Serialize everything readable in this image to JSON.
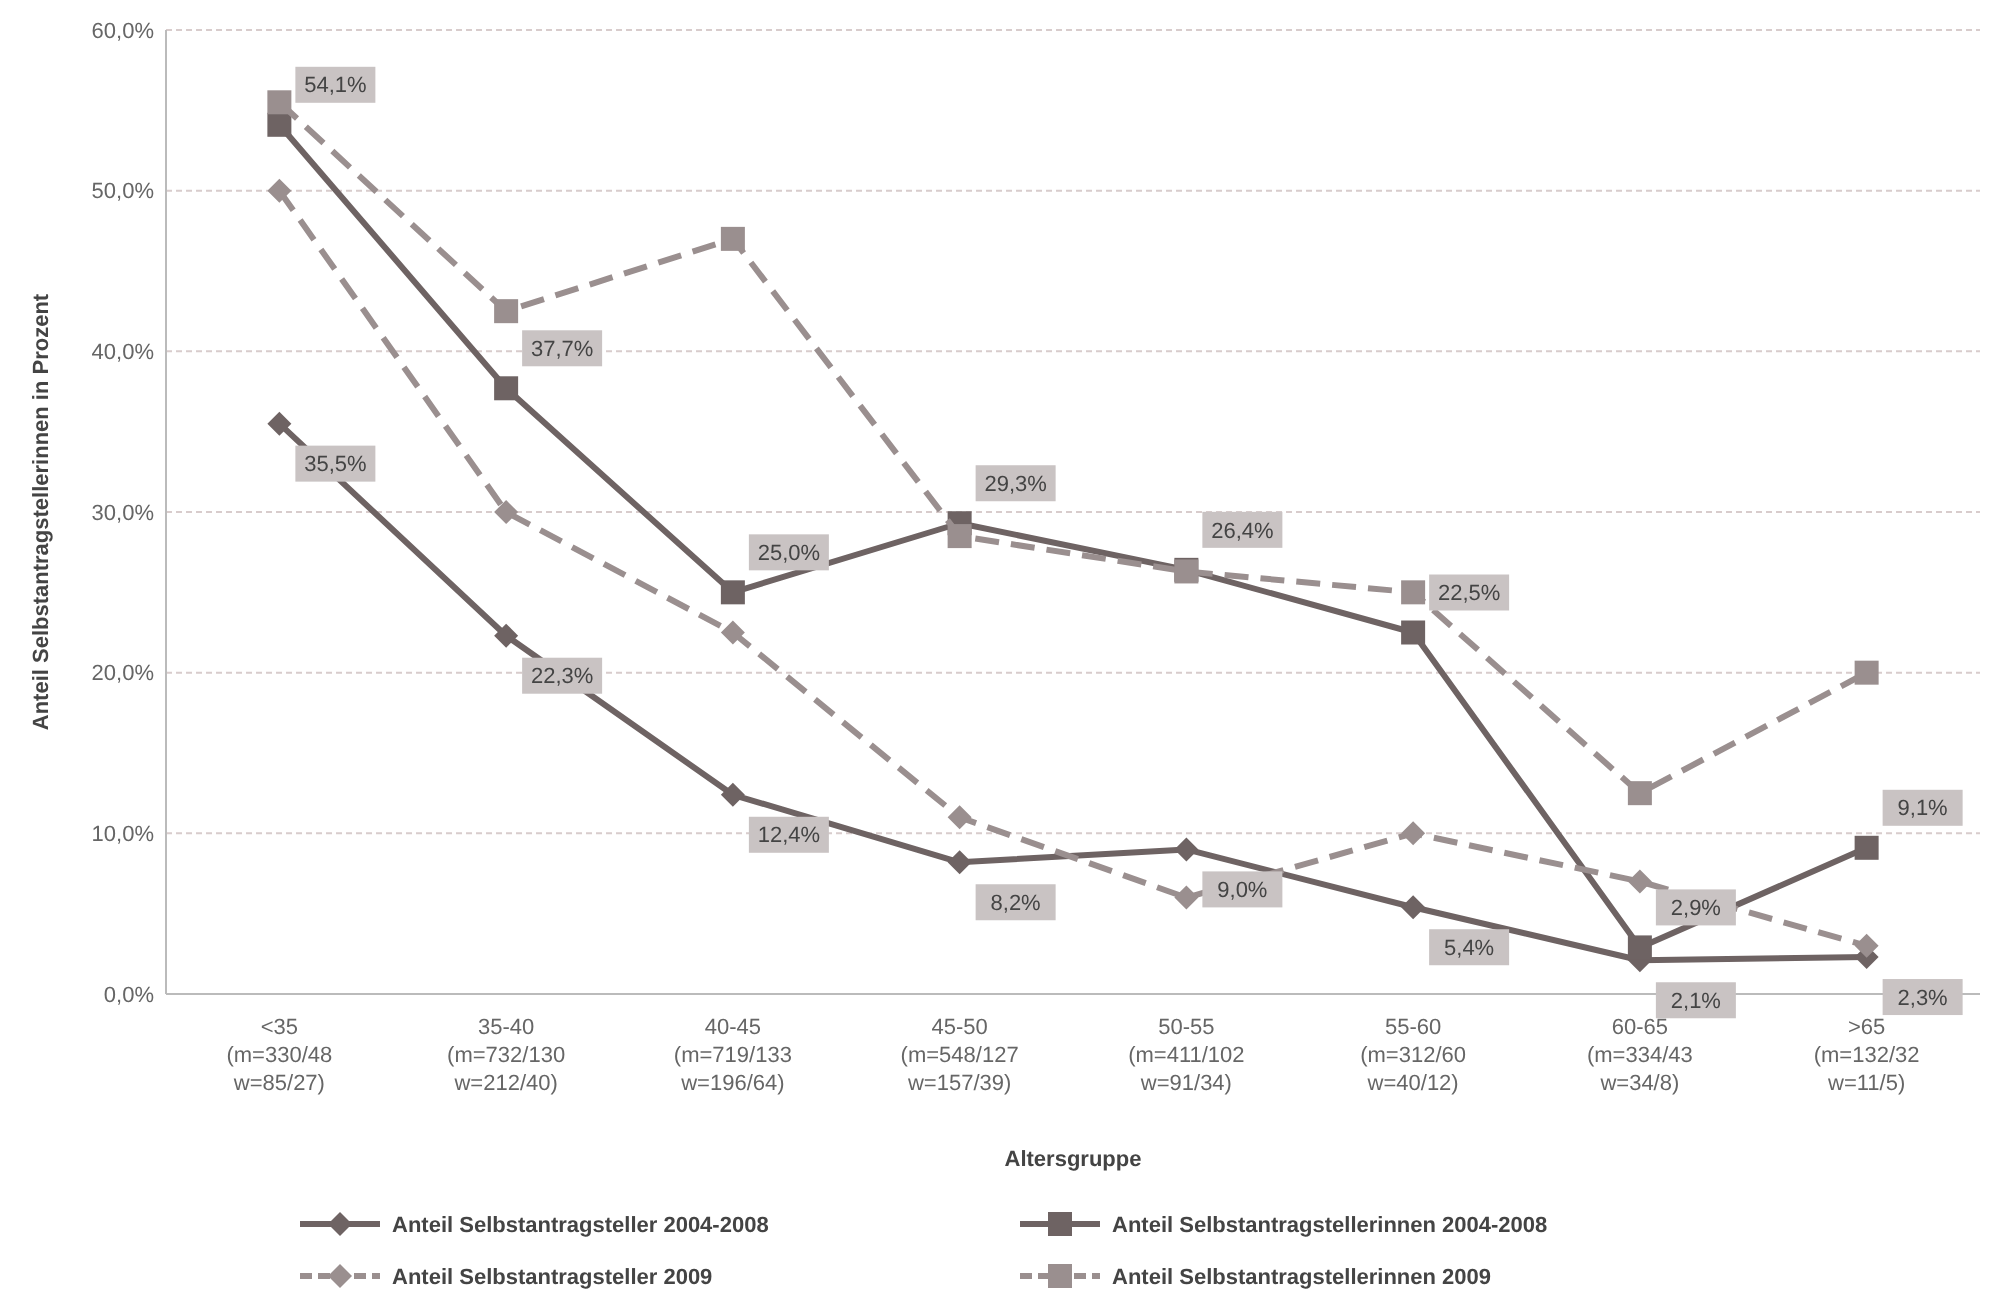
{
  "chart_data": {
    "type": "line",
    "xlabel": "Altersgruppe",
    "ylabel": "Anteil  Selbstantragstellerinnen in Prozent",
    "categories": [
      "<35\n(m=330/48\nw=85/27)",
      "35-40\n(m=732/130\nw=212/40)",
      "40-45\n(m=719/133\nw=196/64)",
      "45-50\n(m=548/127\nw=157/39)",
      "50-55\n(m=411/102\nw=91/34)",
      "55-60\n(m=312/60\nw=40/12)",
      "60-65\n(m=334/43\nw=34/8)",
      ">65\n(m=132/32\nw=11/5)"
    ],
    "ylim": [
      0,
      60
    ],
    "yticks": [
      {
        "value": 0,
        "label": "0,0%"
      },
      {
        "value": 10,
        "label": "10,0%"
      },
      {
        "value": 20,
        "label": "20,0%"
      },
      {
        "value": 30,
        "label": "30,0%"
      },
      {
        "value": 40,
        "label": "40,0%"
      },
      {
        "value": 50,
        "label": "50,0%"
      },
      {
        "value": 60,
        "label": "60,0%"
      }
    ],
    "grid": "y",
    "legend": "bottom",
    "series": [
      {
        "name": "Anteil Selbstantragsteller 2004-2008",
        "color": "#6e6363",
        "marker": "diamond",
        "line_style": "solid",
        "values": [
          35.5,
          22.3,
          12.4,
          8.2,
          9.0,
          5.4,
          2.1,
          2.3
        ],
        "value_labels": [
          "35,5%",
          "22,3%",
          "12,4%",
          "8,2%",
          "9,0%",
          "5,4%",
          "2,1%",
          "2,3%"
        ]
      },
      {
        "name": "Anteil Selbstantragstellerinnen 2004-2008",
        "color": "#6e6363",
        "marker": "square",
        "line_style": "solid",
        "values": [
          54.1,
          37.7,
          25.0,
          29.3,
          26.4,
          22.5,
          2.9,
          9.1
        ],
        "value_labels": [
          "54,1%",
          "37,7%",
          "25,0%",
          "29,3%",
          "26,4%",
          "22,5%",
          "2,9%",
          "9,1%"
        ]
      },
      {
        "name": "Anteil Selbstantragsteller 2009",
        "color": "#9a8f8f",
        "marker": "diamond",
        "line_style": "dashed",
        "values": [
          50.0,
          30.0,
          22.5,
          11.0,
          6.0,
          10.0,
          7.0,
          3.0
        ]
      },
      {
        "name": "Anteil Selbstantragstellerinnen 2009",
        "color": "#9a8f8f",
        "marker": "square",
        "line_style": "dashed",
        "values": [
          55.5,
          42.5,
          47.0,
          28.5,
          26.3,
          25.0,
          12.5,
          20.0
        ]
      }
    ]
  }
}
